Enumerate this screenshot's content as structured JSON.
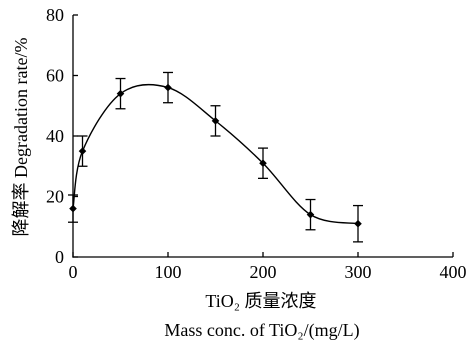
{
  "chart_data": {
    "type": "line",
    "ylabel": "降解率 Degradation rate/%",
    "xlabel": [
      "TiO₂ 质量浓度",
      "Mass conc. of TiO₂/(mg/L)"
    ],
    "xlim": [
      0,
      400
    ],
    "ylim": [
      0,
      80
    ],
    "xticks": [
      0,
      100,
      200,
      300,
      400
    ],
    "yticks": [
      0,
      20,
      40,
      60,
      80
    ],
    "x": [
      0,
      10,
      50,
      100,
      150,
      200,
      250,
      300
    ],
    "series": [
      {
        "values": [
          16,
          35,
          54,
          56,
          45,
          31,
          14,
          11
        ],
        "error": [
          4.5,
          5,
          5,
          5,
          5,
          5,
          5,
          6
        ]
      }
    ],
    "error_bars": true,
    "grid": false,
    "colors": {
      "ink": "#000000",
      "background": "#ffffff"
    }
  }
}
